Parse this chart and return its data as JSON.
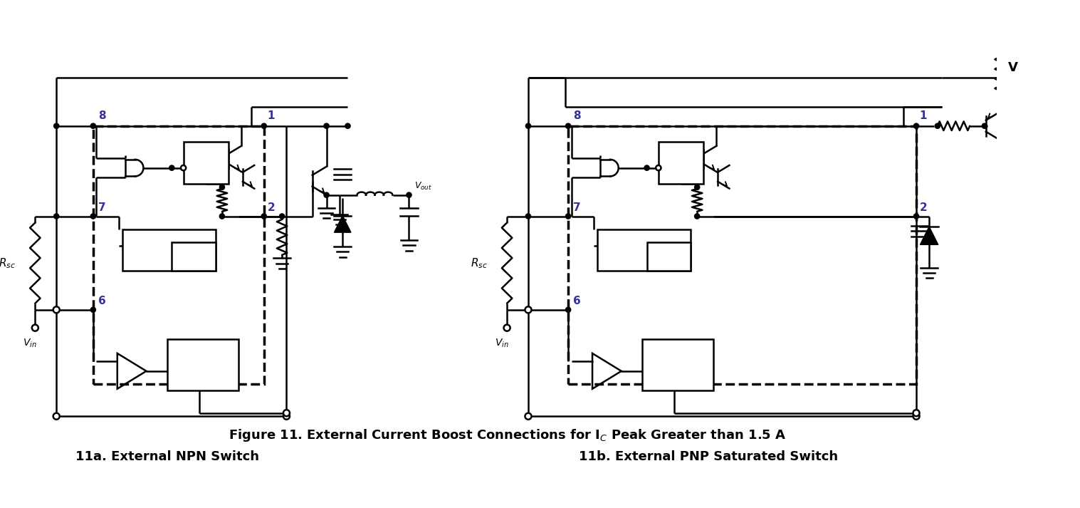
{
  "fig_width": 15.17,
  "fig_height": 7.13,
  "bg_color": "#ffffff",
  "subtitle_left": "11a. External NPN Switch",
  "subtitle_right": "11b. External PNP Saturated Switch"
}
